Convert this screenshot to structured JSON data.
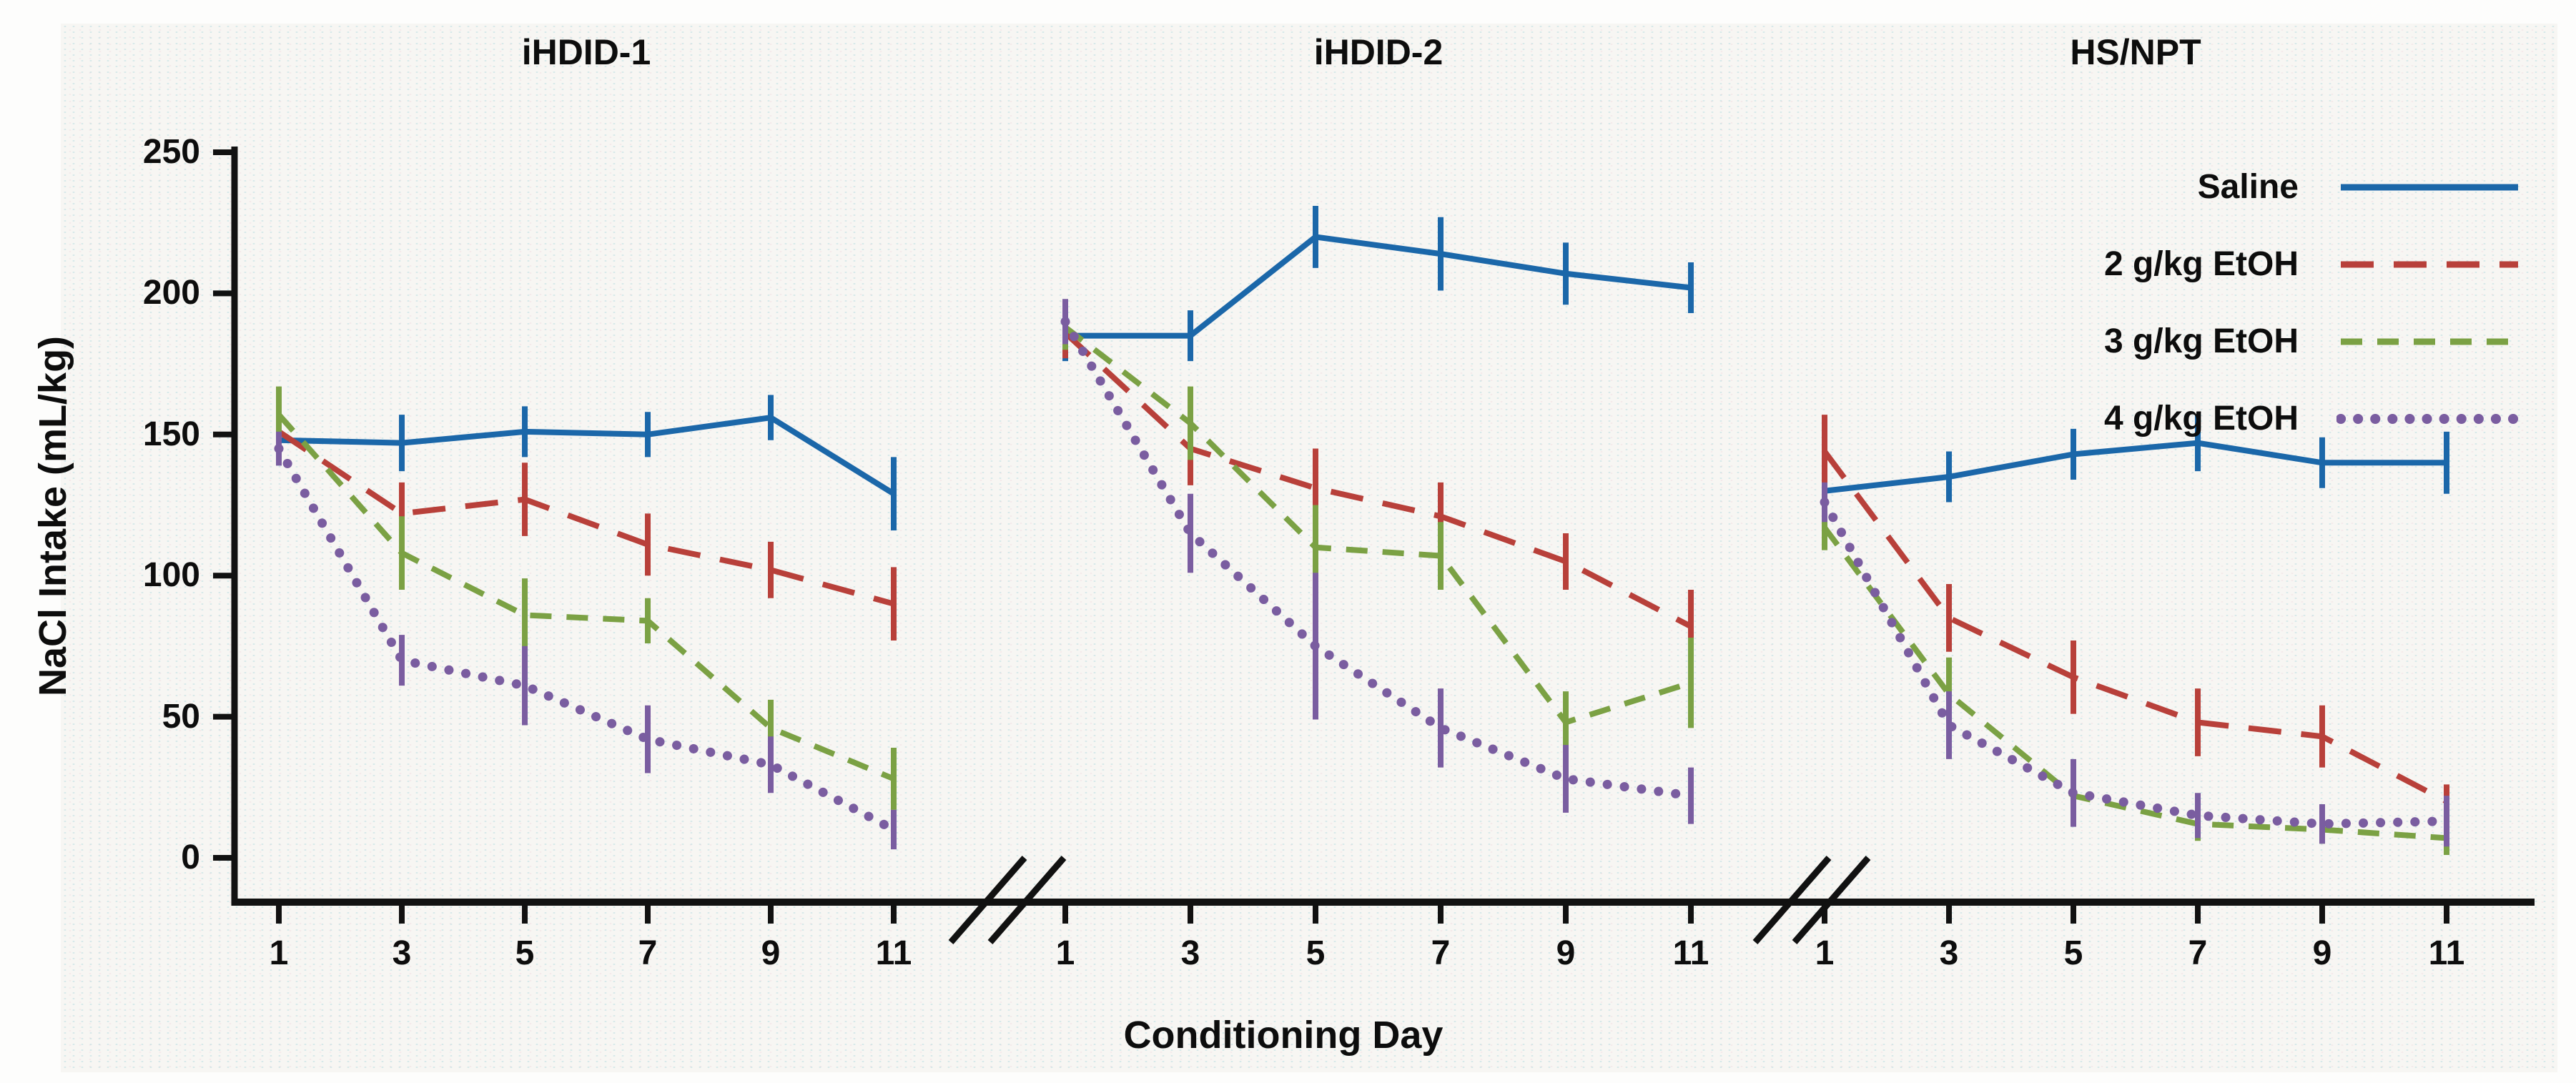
{
  "chart_data": {
    "type": "line",
    "title": "",
    "x": [
      1,
      3,
      5,
      7,
      9,
      11
    ],
    "x_tick_labels": [
      "1",
      "3",
      "5",
      "7",
      "9",
      "11"
    ],
    "xlabel": "Conditioning Day",
    "ylabel": "NaCl Intake (mL/kg)",
    "ylim": [
      0,
      250
    ],
    "y_ticks": [
      0,
      50,
      100,
      150,
      200,
      250
    ],
    "grid": false,
    "legend_position": "top-right",
    "axis_break_between_panels": true,
    "colors": {
      "axis": "#111111",
      "saline": "#1b67a9",
      "etoh2": "#b8403a",
      "etoh3": "#7ba144",
      "etoh4": "#7a5da0"
    },
    "series_styles": [
      {
        "name": "Saline",
        "color": "#1b67a9",
        "dash": "solid"
      },
      {
        "name": "2 g/kg EtOH",
        "color": "#b8403a",
        "dash": "long-dash"
      },
      {
        "name": "3 g/kg EtOH",
        "color": "#7ba144",
        "dash": "dash"
      },
      {
        "name": "4 g/kg EtOH",
        "color": "#7a5da0",
        "dash": "dot"
      }
    ],
    "panels": [
      {
        "title": "iHDID-1",
        "series": [
          {
            "name": "Saline",
            "values": [
              148,
              147,
              151,
              150,
              156,
              129
            ],
            "errors": [
              9,
              10,
              9,
              8,
              8,
              13
            ]
          },
          {
            "name": "2 g/kg EtOH",
            "values": [
              151,
              122,
              127,
              111,
              102,
              90
            ],
            "errors": [
              8,
              11,
              13,
              11,
              10,
              13
            ]
          },
          {
            "name": "3 g/kg EtOH",
            "values": [
              157,
              108,
              86,
              84,
              46,
              28
            ],
            "errors": [
              10,
              13,
              13,
              8,
              10,
              11
            ]
          },
          {
            "name": "4 g/kg EtOH",
            "values": [
              145,
              70,
              61,
              42,
              33,
              10
            ],
            "errors": [
              6,
              9,
              14,
              12,
              10,
              7
            ]
          }
        ]
      },
      {
        "title": "iHDID-2",
        "series": [
          {
            "name": "Saline",
            "values": [
              185,
              185,
              220,
              214,
              207,
              202
            ],
            "errors": [
              9,
              9,
              11,
              13,
              11,
              9
            ]
          },
          {
            "name": "2 g/kg EtOH",
            "values": [
              186,
              145,
              131,
              121,
              105,
              82
            ],
            "errors": [
              9,
              13,
              14,
              12,
              10,
              13
            ]
          },
          {
            "name": "3 g/kg EtOH",
            "values": [
              188,
              154,
              110,
              107,
              48,
              62
            ],
            "errors": [
              8,
              13,
              15,
              12,
              11,
              16
            ]
          },
          {
            "name": "4 g/kg EtOH",
            "values": [
              190,
              115,
              75,
              46,
              28,
              22
            ],
            "errors": [
              8,
              14,
              26,
              14,
              12,
              10
            ]
          }
        ]
      },
      {
        "title": "HS/NPT",
        "series": [
          {
            "name": "Saline",
            "values": [
              130,
              135,
              143,
              147,
              140,
              140
            ],
            "errors": [
              10,
              9,
              9,
              10,
              9,
              11
            ]
          },
          {
            "name": "2 g/kg EtOH",
            "values": [
              144,
              85,
              64,
              48,
              43,
              20
            ],
            "errors": [
              13,
              12,
              13,
              12,
              11,
              6
            ]
          },
          {
            "name": "3 g/kg EtOH",
            "values": [
              117,
              58,
              22,
              12,
              10,
              7
            ],
            "errors": [
              8,
              13,
              10,
              6,
              5,
              6
            ]
          },
          {
            "name": "4 g/kg EtOH",
            "values": [
              126,
              47,
              23,
              15,
              12,
              13
            ],
            "errors": [
              7,
              12,
              12,
              8,
              7,
              9
            ]
          }
        ]
      }
    ]
  }
}
